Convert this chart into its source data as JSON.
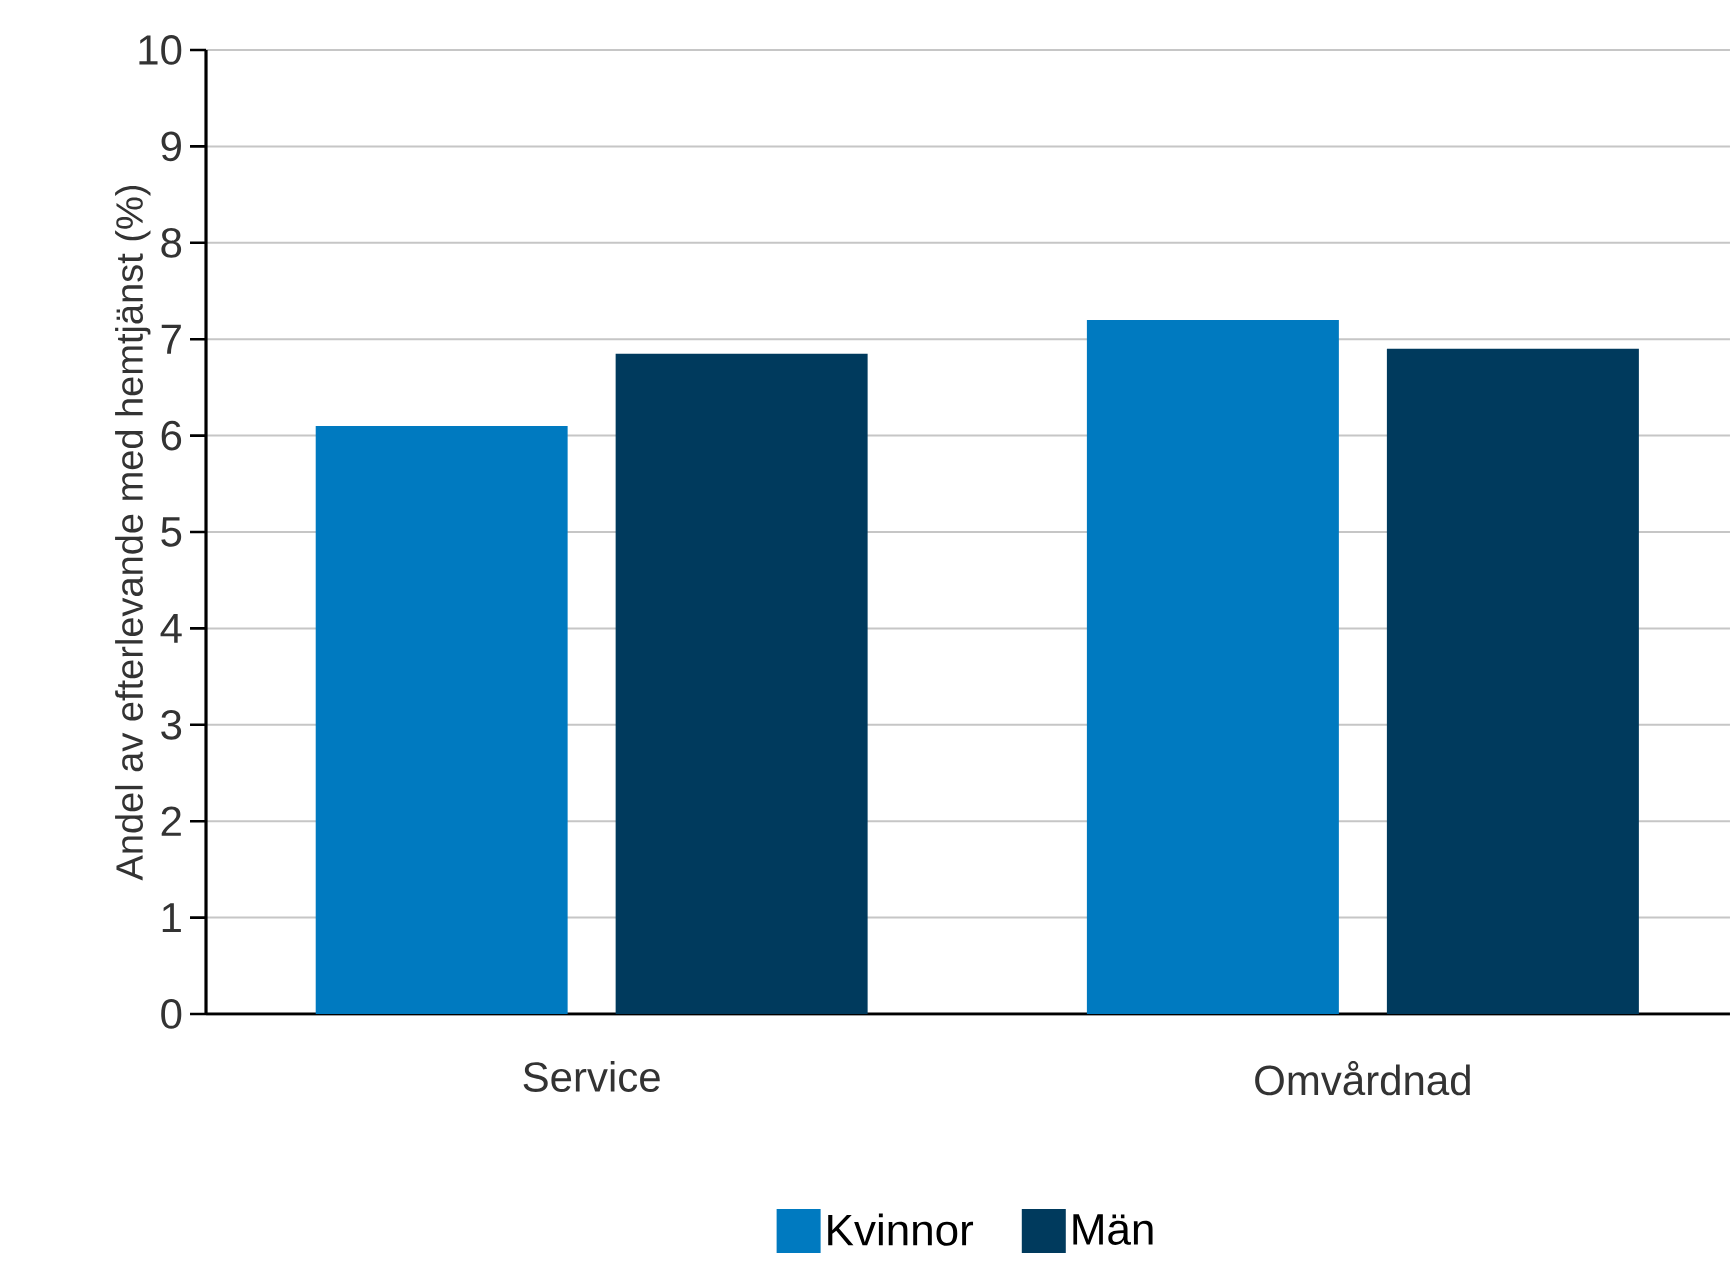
{
  "chart_data": {
    "type": "bar",
    "ylabel": "Andel av efterlevande med hemtjänst (%)",
    "categories": [
      "Service",
      "Omvårdnad"
    ],
    "series": [
      {
        "name": "Kvinnor",
        "color": "#007ac0",
        "values": [
          6.1,
          7.2
        ]
      },
      {
        "name": "Män",
        "color": "#003a5d",
        "values": [
          6.85,
          6.9
        ]
      }
    ],
    "ylim": [
      0,
      10
    ],
    "yticks": [
      0,
      1,
      2,
      3,
      4,
      5,
      6,
      7,
      8,
      9,
      10
    ],
    "grid": "y",
    "legend": "bottom"
  }
}
